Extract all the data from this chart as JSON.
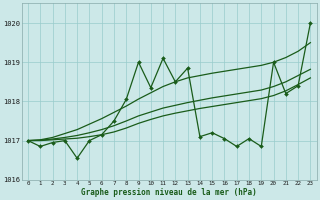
{
  "xlabel": "Graphe pression niveau de la mer (hPa)",
  "hours": [
    0,
    1,
    2,
    3,
    4,
    5,
    6,
    7,
    8,
    9,
    10,
    11,
    12,
    13,
    14,
    15,
    16,
    17,
    18,
    19,
    20,
    21,
    22,
    23
  ],
  "y_jagged": [
    1017.0,
    1016.85,
    1016.95,
    1017.0,
    1016.55,
    1017.0,
    1017.15,
    1017.5,
    1018.05,
    1019.0,
    1018.35,
    1019.1,
    1018.5,
    1018.85,
    1017.1,
    1017.2,
    1017.05,
    1016.85,
    1017.05,
    1016.85,
    1019.0,
    1018.2,
    1018.4,
    1020.0
  ],
  "y_upper": [
    1017.0,
    1017.02,
    1017.08,
    1017.18,
    1017.28,
    1017.42,
    1017.56,
    1017.72,
    1017.88,
    1018.06,
    1018.22,
    1018.38,
    1018.5,
    1018.6,
    1018.66,
    1018.72,
    1018.77,
    1018.82,
    1018.87,
    1018.92,
    1019.0,
    1019.12,
    1019.28,
    1019.5
  ],
  "y_mid": [
    1017.0,
    1017.01,
    1017.04,
    1017.08,
    1017.13,
    1017.2,
    1017.28,
    1017.38,
    1017.5,
    1017.63,
    1017.73,
    1017.83,
    1017.9,
    1017.97,
    1018.03,
    1018.09,
    1018.14,
    1018.19,
    1018.24,
    1018.29,
    1018.38,
    1018.5,
    1018.66,
    1018.82
  ],
  "y_lower": [
    1017.0,
    1017.0,
    1017.02,
    1017.04,
    1017.06,
    1017.1,
    1017.15,
    1017.22,
    1017.32,
    1017.44,
    1017.54,
    1017.63,
    1017.7,
    1017.76,
    1017.82,
    1017.87,
    1017.92,
    1017.97,
    1018.02,
    1018.07,
    1018.15,
    1018.27,
    1018.43,
    1018.6
  ],
  "ylim": [
    1016.0,
    1020.5
  ],
  "yticks": [
    1016,
    1017,
    1018,
    1019,
    1020
  ],
  "bg_color": "#cce8e8",
  "grid_color": "#99cccc",
  "line_color": "#1a5c1a",
  "marker": "D",
  "marker_size": 2.0,
  "lw_jagged": 0.9,
  "lw_trend": 0.9
}
